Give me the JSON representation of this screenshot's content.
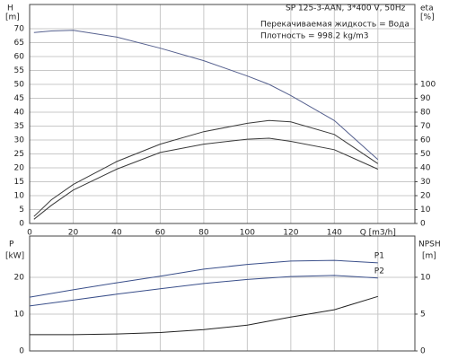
{
  "chart_data": [
    {
      "type": "line",
      "annotations": [
        "SP 125-3-AAN, 3*400 V, 50Hz",
        "Перекачиваемая жидкость = Вода",
        "Плотность = 998.2 kg/m3"
      ],
      "y_label": "H",
      "y_unit": "[m]",
      "y2_label": "eta",
      "y2_unit": "[%]",
      "x": [
        2,
        10,
        20,
        40,
        60,
        80,
        100,
        110,
        120,
        140,
        160
      ],
      "xlim": [
        0,
        177
      ],
      "xticks": [
        0,
        20,
        40,
        60,
        80,
        100,
        120,
        140,
        {
          "value": 160,
          "label": "Q [m3/h]"
        }
      ],
      "ylim": [
        0,
        78.7
      ],
      "yticks": [
        0,
        5,
        10,
        15,
        20,
        25,
        30,
        35,
        40,
        45,
        50,
        55,
        60,
        65,
        70
      ],
      "y2lim": [
        0,
        157.4
      ],
      "y2ticks": [
        0,
        10,
        20,
        30,
        40,
        50,
        60,
        70,
        80,
        90,
        100
      ],
      "grid": true,
      "series": [
        {
          "color": "#56618f",
          "values": [
            68.6,
            69.2,
            69.4,
            67,
            63,
            58.5,
            53,
            50,
            46,
            37,
            23
          ]
        },
        {
          "color": "#3a3a3a",
          "axis": "y2",
          "values": [
            5,
            17,
            28,
            44.5,
            57,
            66,
            72,
            74,
            73,
            64,
            43
          ]
        },
        {
          "color": "#3a3a3a",
          "axis": "y2",
          "values": [
            3,
            13,
            24,
            39,
            51,
            57,
            60.6,
            61.3,
            59,
            53,
            39
          ]
        }
      ]
    },
    {
      "type": "line",
      "y_label": "P",
      "y_unit": "[kW]",
      "y2_label": "NPSH",
      "y2_unit": "[m]",
      "x": [
        0,
        20,
        40,
        60,
        80,
        100,
        120,
        140,
        160
      ],
      "xlim": [
        0,
        177
      ],
      "xticks": [
        0,
        20,
        40,
        60,
        80,
        100,
        120,
        140,
        160
      ],
      "ylim": [
        0,
        31.2
      ],
      "yticks": [
        0,
        10,
        20
      ],
      "y2lim": [
        0,
        15.6
      ],
      "y2ticks": [
        0,
        5,
        10
      ],
      "grid": true,
      "series": [
        {
          "name": "P1",
          "color": "#3a4f8a",
          "values": [
            14.6,
            16.6,
            18.5,
            20.3,
            22.2,
            23.5,
            24.4,
            24.6,
            23.9
          ]
        },
        {
          "name": "P2",
          "color": "#3a4f8a",
          "values": [
            12.2,
            13.8,
            15.4,
            16.9,
            18.3,
            19.4,
            20.2,
            20.5,
            19.8
          ]
        },
        {
          "color": "#222222",
          "axis": "y2",
          "values": [
            2.2,
            2.2,
            2.3,
            2.5,
            2.9,
            3.5,
            4.6,
            5.6,
            7.4
          ]
        }
      ]
    }
  ]
}
